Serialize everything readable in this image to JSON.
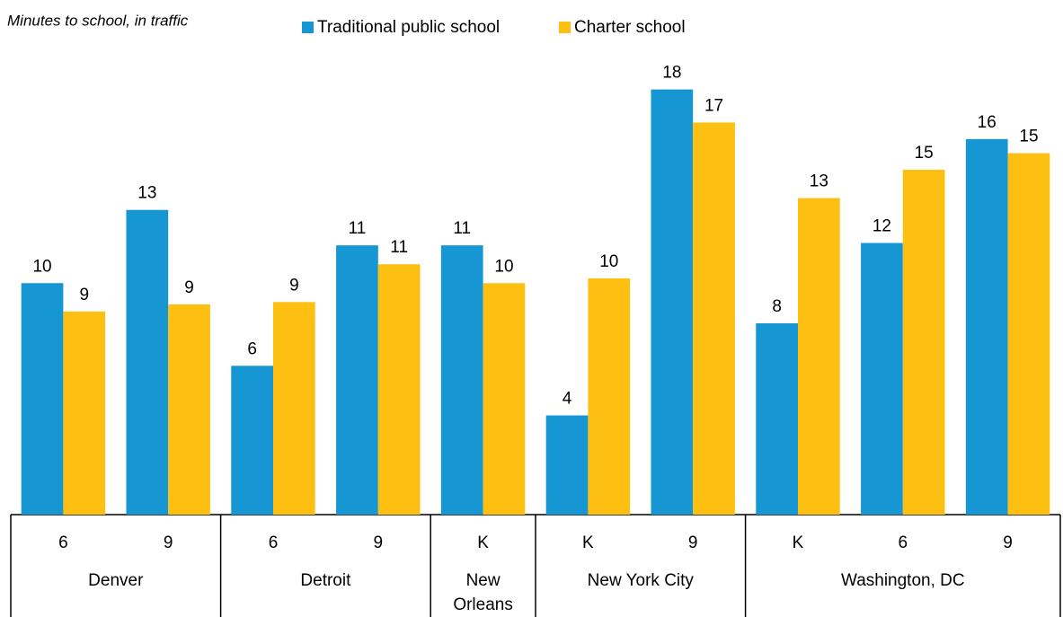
{
  "chart_data": {
    "type": "bar",
    "subtitle": "Minutes to school, in traffic",
    "groups": [
      {
        "name": "Denver",
        "categories": [
          "6",
          "9"
        ]
      },
      {
        "name": "Detroit",
        "categories": [
          "6",
          "9"
        ]
      },
      {
        "name": "New Orleans",
        "categories": [
          "K"
        ]
      },
      {
        "name": "New York City",
        "categories": [
          "K",
          "9"
        ]
      },
      {
        "name": "Washington, DC",
        "categories": [
          "K",
          "6",
          "9"
        ]
      }
    ],
    "series": [
      {
        "name": "Traditional public school",
        "color": "#1696d2",
        "values": [
          9.8,
          12.9,
          6.3,
          11.4,
          11.4,
          4.2,
          18.0,
          8.1,
          11.5,
          15.9
        ],
        "value_labels": [
          "10",
          "13",
          "6",
          "11",
          "11",
          "4",
          "18",
          "8",
          "12",
          "16"
        ]
      },
      {
        "name": "Charter school",
        "color": "#fdbf11",
        "values": [
          8.6,
          8.9,
          9.0,
          10.6,
          9.8,
          10.0,
          16.6,
          13.4,
          14.6,
          15.3
        ],
        "value_labels": [
          "9",
          "9",
          "9",
          "11",
          "10",
          "10",
          "17",
          "13",
          "15",
          "15"
        ]
      }
    ],
    "ylim": [
      0,
      20
    ]
  }
}
